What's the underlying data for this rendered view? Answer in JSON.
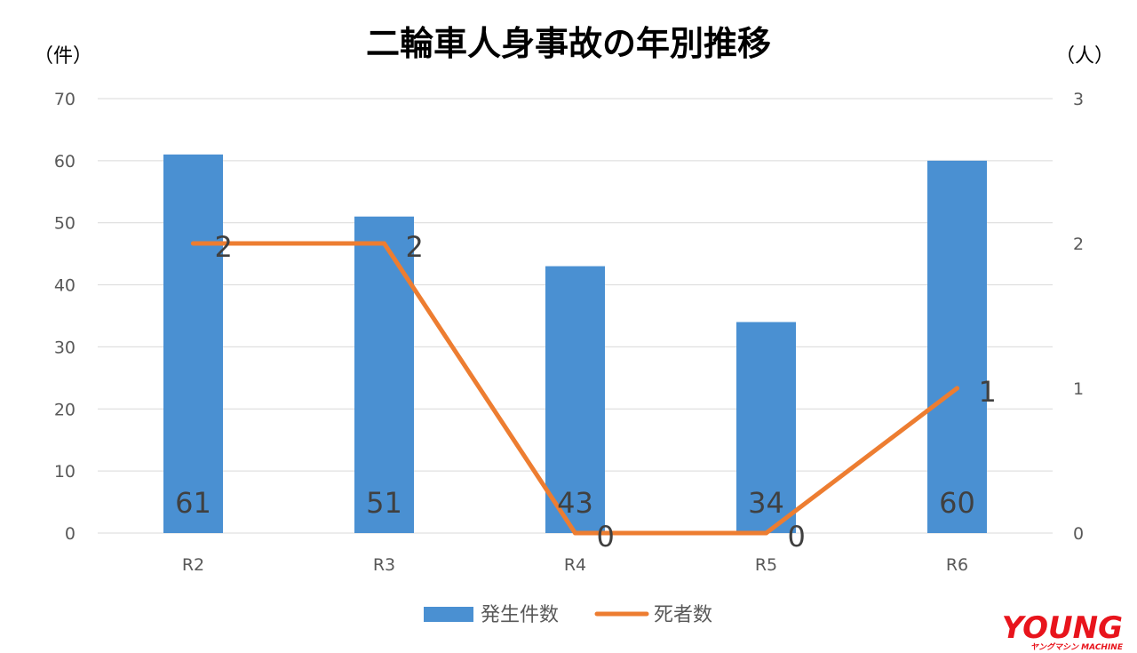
{
  "chart_data": {
    "type": "bar",
    "title": "二輪車人身事故の年別推移",
    "y_left_unit": "（件）",
    "y_right_unit": "（人）",
    "categories": [
      "R2",
      "R3",
      "R4",
      "R5",
      "R6"
    ],
    "y_left_ticks": [
      "0",
      "10",
      "20",
      "30",
      "40",
      "50",
      "60",
      "70"
    ],
    "y_right_ticks": [
      "0",
      "1",
      "2",
      "3"
    ],
    "ylim_left": [
      0,
      70
    ],
    "ylim_right": [
      0,
      3
    ],
    "grid": true,
    "legend_position": "bottom",
    "series": [
      {
        "name": "発生件数",
        "type": "bar",
        "axis": "left",
        "color": "#4a90d2",
        "values": [
          61,
          51,
          43,
          34,
          60
        ]
      },
      {
        "name": "死者数",
        "type": "line",
        "axis": "right",
        "color": "#ed7d31",
        "values": [
          2,
          2,
          0,
          0,
          1
        ]
      }
    ]
  },
  "logo": {
    "main": "YOUNG",
    "sub": "ヤングマシン MACHINE"
  }
}
